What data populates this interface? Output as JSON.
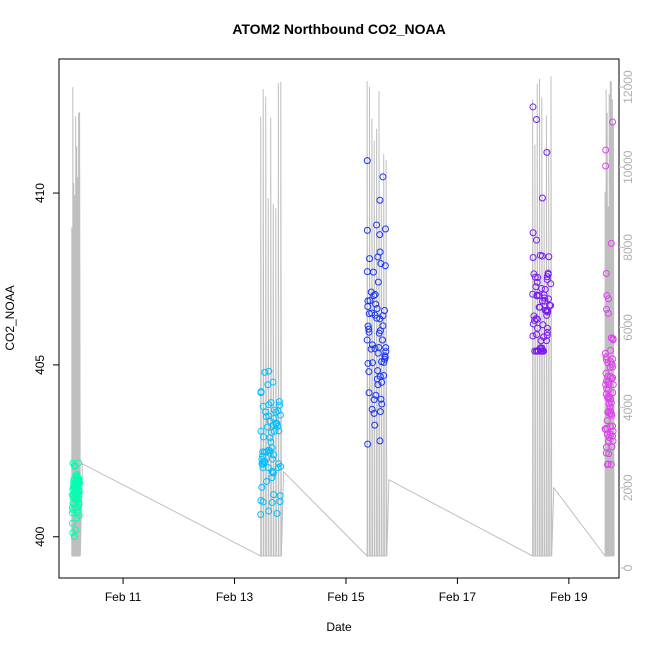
{
  "chart_data": {
    "type": "scatter",
    "title": "ATOM2 Northbound CO2_NOAA",
    "xlabel": "Date",
    "ylabel": "CO2_NOAA",
    "x_unit": "days",
    "xlim": [
      9.85,
      19.9
    ],
    "ylim": [
      398.8,
      413.9
    ],
    "y2lim": [
      -250,
      12700
    ],
    "x_ticks": [
      {
        "value": 11,
        "label": "Feb 11"
      },
      {
        "value": 13,
        "label": "Feb 13"
      },
      {
        "value": 15,
        "label": "Feb 15"
      },
      {
        "value": 17,
        "label": "Feb 17"
      },
      {
        "value": 19,
        "label": "Feb 19"
      }
    ],
    "y_ticks": [
      {
        "value": 400,
        "label": "400"
      },
      {
        "value": 405,
        "label": "405"
      },
      {
        "value": 410,
        "label": "410"
      }
    ],
    "y2_ticks": [
      {
        "value": 0,
        "label": "0"
      },
      {
        "value": 2000,
        "label": "2000"
      },
      {
        "value": 4000,
        "label": "4000"
      },
      {
        "value": 6000,
        "label": "6000"
      },
      {
        "value": 8000,
        "label": "8000"
      },
      {
        "value": 10000,
        "label": "10000"
      },
      {
        "value": 12000,
        "label": "12000"
      }
    ],
    "colors": {
      "altitude_line": "#bfbfbf",
      "axis": "#000000",
      "secondary_axis": "#bfbfbf"
    },
    "flights": [
      {
        "x_start": 10.08,
        "x_end": 10.22,
        "color": "#00ffb0",
        "y_min": 399.3,
        "y_max": 402.3,
        "center": 401.3
      },
      {
        "x_start": 13.47,
        "x_end": 13.83,
        "color": "#00bfff",
        "y_min": 399.1,
        "y_max": 405.9,
        "center": 402.6
      },
      {
        "x_start": 15.38,
        "x_end": 15.72,
        "color": "#1a35f0",
        "y_min": 400.6,
        "y_max": 411.6,
        "center": 406.0
      },
      {
        "x_start": 18.35,
        "x_end": 18.68,
        "color": "#7a1af0",
        "y_min": 405.4,
        "y_max": 413.4,
        "center": 406.5
      },
      {
        "x_start": 19.65,
        "x_end": 19.8,
        "color": "#e040f0",
        "y_min": 402.1,
        "y_max": 412.7,
        "center": 404.0
      }
    ]
  }
}
